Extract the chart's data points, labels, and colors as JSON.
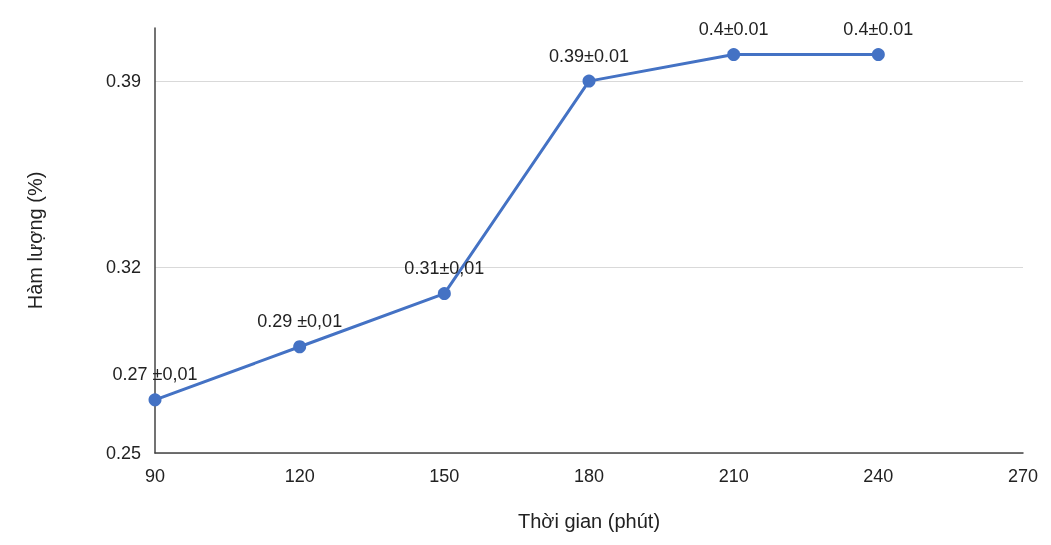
{
  "chart_data": {
    "type": "line",
    "xlabel": "Thời gian (phút)",
    "ylabel": "Hàm lượng (%)",
    "x": [
      90,
      120,
      150,
      180,
      210,
      240
    ],
    "series": [
      {
        "color": "#4472c4",
        "values": [
          0.27,
          0.29,
          0.31,
          0.39,
          0.4,
          0.4
        ],
        "value_labels": [
          "0.27 ±0,01",
          "0.29 ±0,01",
          "0.31±0,01",
          "0.39±0.01",
          "0.4±0.01",
          "0.4±0.01"
        ]
      }
    ],
    "xlim": [
      90,
      270
    ],
    "xticks": [
      90,
      120,
      150,
      180,
      210,
      240,
      270
    ],
    "ylim": [
      0.25,
      0.41
    ],
    "yticks": [
      0.25,
      0.32,
      0.39
    ],
    "grid": "y",
    "marker": "circle",
    "line_style": "solid"
  }
}
